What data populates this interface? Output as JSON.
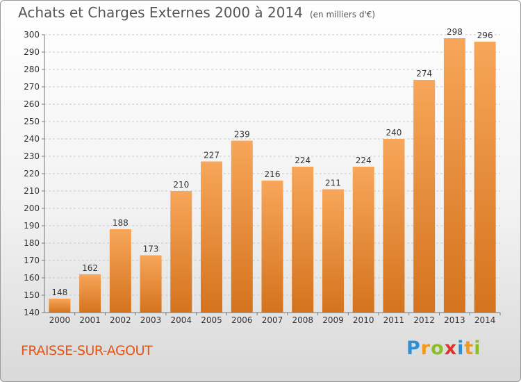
{
  "header": {
    "title": "Achats et Charges Externes 2000 à 2014",
    "unit": "(en milliers d'€)"
  },
  "footer": {
    "place": "FRAISSE-SUR-AGOUT",
    "logo_letters": [
      "P",
      "r",
      "o",
      "x",
      "i",
      "t",
      "i"
    ],
    "logo_colors": [
      "#2f8fd1",
      "#f29a1f",
      "#8cbf26",
      "#e2332b",
      "#2f8fd1",
      "#f29a1f",
      "#8cbf26"
    ]
  },
  "chart_data": {
    "type": "bar",
    "categories": [
      "2000",
      "2001",
      "2002",
      "2003",
      "2004",
      "2005",
      "2006",
      "2007",
      "2008",
      "2009",
      "2010",
      "2011",
      "2012",
      "2013",
      "2014"
    ],
    "values": [
      148,
      162,
      188,
      173,
      210,
      227,
      239,
      216,
      224,
      211,
      224,
      240,
      274,
      298,
      296
    ],
    "ylim": [
      140,
      300
    ],
    "yticks": [
      140,
      150,
      160,
      170,
      180,
      190,
      200,
      210,
      220,
      230,
      240,
      250,
      260,
      270,
      280,
      290,
      300
    ],
    "grid": "horizontal dashed",
    "bar_color_top": "#f7a65a",
    "bar_color_bottom": "#d4731d"
  }
}
